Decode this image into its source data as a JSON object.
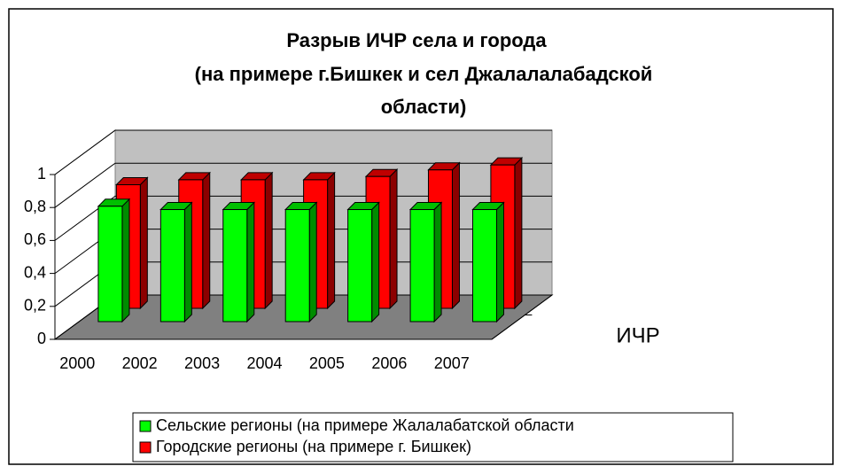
{
  "chart_data": {
    "type": "bar3d",
    "title": [
      "Разрыв ИЧР села и города",
      "(на примере г.Бишкек и сел Джалалалабадской",
      "области)"
    ],
    "categories": [
      "2000",
      "2002",
      "2003",
      "2004",
      "2005",
      "2006",
      "2007"
    ],
    "series": [
      {
        "name": "Сельские регионы (на примере Жалалабатской области",
        "color": "#00ff00",
        "values": [
          0.7,
          0.68,
          0.68,
          0.68,
          0.68,
          0.68,
          0.68
        ]
      },
      {
        "name": "Городские регионы (на примере г. Бишкек)",
        "color": "#ff0000",
        "values": [
          0.75,
          0.78,
          0.78,
          0.78,
          0.8,
          0.84,
          0.87
        ]
      }
    ],
    "depth_label": "ИЧР",
    "ylim": [
      0,
      1
    ],
    "yticks": [
      0,
      {
        "value": 0.2,
        "label": "0,2"
      },
      {
        "value": 0.4,
        "label": "0,4"
      },
      {
        "value": 0.6,
        "label": "0,6"
      },
      {
        "value": 0.8,
        "label": "0,8"
      },
      1
    ],
    "grid": true,
    "legend": "bottom"
  }
}
